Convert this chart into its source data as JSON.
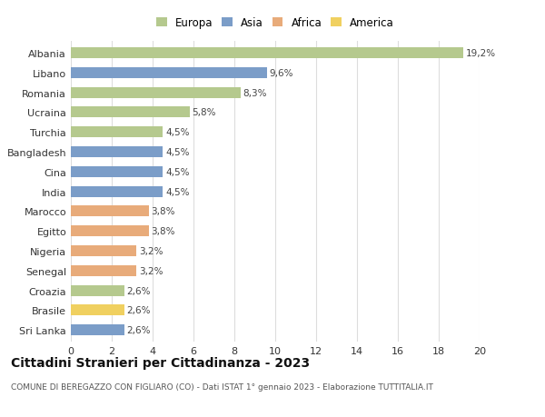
{
  "categories": [
    "Albania",
    "Libano",
    "Romania",
    "Ucraina",
    "Turchia",
    "Bangladesh",
    "Cina",
    "India",
    "Marocco",
    "Egitto",
    "Nigeria",
    "Senegal",
    "Croazia",
    "Brasile",
    "Sri Lanka"
  ],
  "values": [
    19.2,
    9.6,
    8.3,
    5.8,
    4.5,
    4.5,
    4.5,
    4.5,
    3.8,
    3.8,
    3.2,
    3.2,
    2.6,
    2.6,
    2.6
  ],
  "labels": [
    "19,2%",
    "9,6%",
    "8,3%",
    "5,8%",
    "4,5%",
    "4,5%",
    "4,5%",
    "4,5%",
    "3,8%",
    "3,8%",
    "3,2%",
    "3,2%",
    "2,6%",
    "2,6%",
    "2,6%"
  ],
  "continents": [
    "Europa",
    "Asia",
    "Europa",
    "Europa",
    "Europa",
    "Asia",
    "Asia",
    "Asia",
    "Africa",
    "Africa",
    "Africa",
    "Africa",
    "Europa",
    "America",
    "Asia"
  ],
  "colors": {
    "Europa": "#b5c98e",
    "Asia": "#7b9dc8",
    "Africa": "#e8ab7a",
    "America": "#f0d060"
  },
  "legend_order": [
    "Europa",
    "Asia",
    "Africa",
    "America"
  ],
  "title": "Cittadini Stranieri per Cittadinanza - 2023",
  "subtitle": "COMUNE DI BEREGAZZO CON FIGLIARO (CO) - Dati ISTAT 1° gennaio 2023 - Elaborazione TUTTITALIA.IT",
  "xlim": [
    0,
    20
  ],
  "xticks": [
    0,
    2,
    4,
    6,
    8,
    10,
    12,
    14,
    16,
    18,
    20
  ],
  "background_color": "#ffffff",
  "grid_color": "#dddddd",
  "bar_height": 0.55,
  "title_fontsize": 10,
  "subtitle_fontsize": 6.5,
  "tick_fontsize": 8,
  "label_fontsize": 7.5,
  "legend_fontsize": 8.5
}
